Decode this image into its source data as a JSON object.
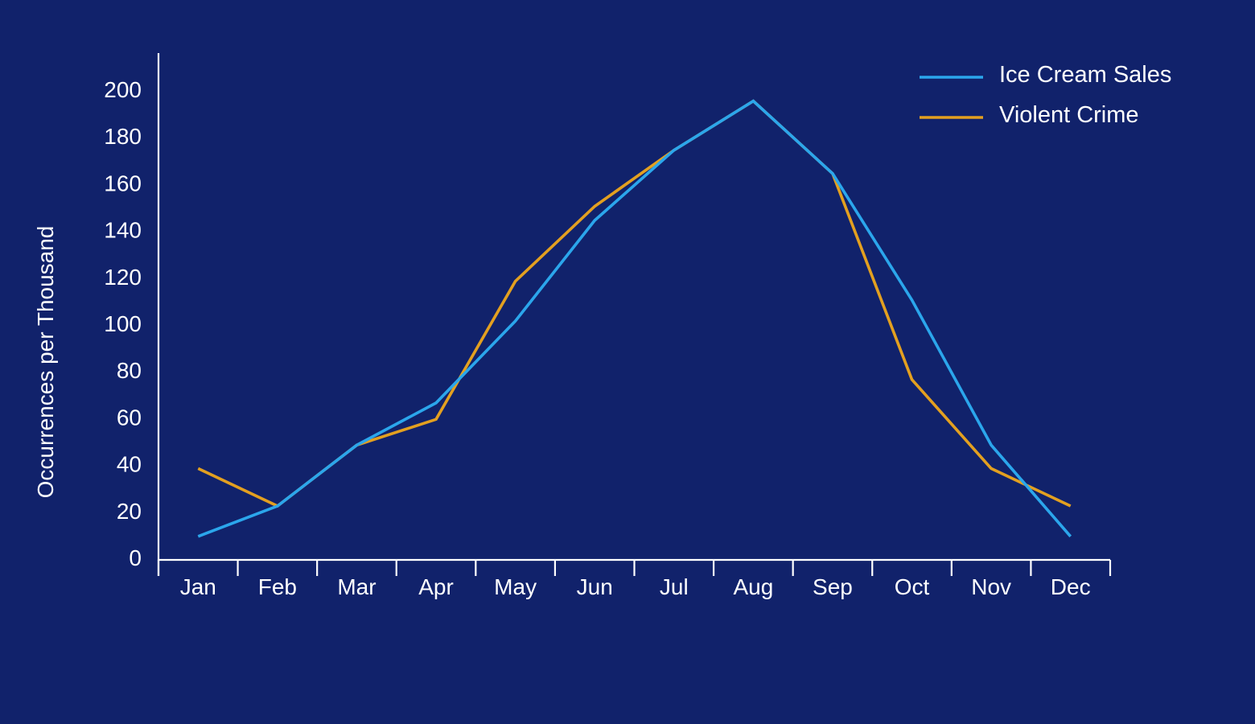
{
  "colors": {
    "background": "#11226b",
    "axis": "#ffffff",
    "ice_cream": "#2ba6ec",
    "violent_crime": "#e3a020"
  },
  "chart_data": {
    "type": "line",
    "title": "",
    "xlabel": "",
    "ylabel": "Occurrences per Thousand",
    "categories": [
      "Jan",
      "Feb",
      "Mar",
      "Apr",
      "May",
      "Jun",
      "Jul",
      "Aug",
      "Sep",
      "Oct",
      "Nov",
      "Dec"
    ],
    "ylim": [
      0,
      200
    ],
    "yticks": [
      0,
      20,
      40,
      60,
      80,
      100,
      120,
      140,
      160,
      180,
      200
    ],
    "grid": false,
    "legend_position": "top-right",
    "series": [
      {
        "name": "Ice Cream Sales",
        "color": "#2ba6ec",
        "values": [
          9,
          22,
          48,
          66,
          101,
          144,
          174,
          195,
          164,
          110,
          48,
          9
        ]
      },
      {
        "name": "Violent Crime",
        "color": "#e3a020",
        "values": [
          38,
          22,
          48,
          59,
          118,
          150,
          174,
          195,
          164,
          76,
          38,
          22
        ]
      }
    ]
  }
}
